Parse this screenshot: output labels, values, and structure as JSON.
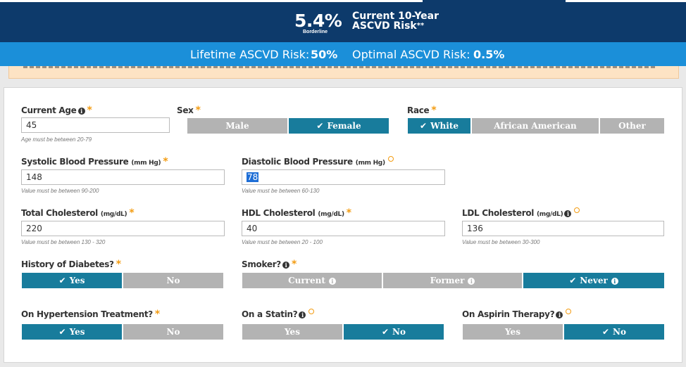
{
  "header": {
    "risk_value": "5.4%",
    "risk_class": "Borderline",
    "risk_title_line1": "Current 10-Year",
    "risk_title_line2": "ASCVD Risk",
    "risk_title_marker": "**",
    "lifetime_label": "Lifetime ASCVD Risk:",
    "lifetime_value": "50%",
    "optimal_label": "Optimal ASCVD Risk:",
    "optimal_value": "0.5%"
  },
  "form": {
    "age": {
      "label": "Current Age",
      "value": "45",
      "hint": "Age must be between 20-79"
    },
    "sex": {
      "label": "Sex",
      "options": [
        "Male",
        "Female"
      ],
      "selected": "Female"
    },
    "race": {
      "label": "Race",
      "options": [
        "White",
        "African American",
        "Other"
      ],
      "selected": "White"
    },
    "systolic": {
      "label": "Systolic Blood Pressure",
      "unit": "(mm Hg)",
      "value": "148",
      "hint": "Value must be between 90-200"
    },
    "diastolic": {
      "label": "Diastolic Blood Pressure",
      "unit": "(mm Hg)",
      "value": "78",
      "hint": "Value must be between 60-130"
    },
    "total_chol": {
      "label": "Total Cholesterol",
      "unit": "(mg/dL)",
      "value": "220",
      "hint": "Value must be between 130 - 320"
    },
    "hdl": {
      "label": "HDL Cholesterol",
      "unit": "(mg/dL)",
      "value": "40",
      "hint": "Value must be between 20 - 100"
    },
    "ldl": {
      "label": "LDL Cholesterol",
      "unit": "(mg/dL)",
      "value": "136",
      "hint": "Value must be between 30-300"
    },
    "diabetes": {
      "label": "History of Diabetes?",
      "options": [
        "Yes",
        "No"
      ],
      "selected": "Yes"
    },
    "smoker": {
      "label": "Smoker?",
      "options": [
        "Current",
        "Former",
        "Never"
      ],
      "selected": "Never"
    },
    "hypertension": {
      "label": "On Hypertension Treatment?",
      "options": [
        "Yes",
        "No"
      ],
      "selected": "Yes"
    },
    "statin": {
      "label": "On a Statin?",
      "options": [
        "Yes",
        "No"
      ],
      "selected": "No"
    },
    "aspirin": {
      "label": "On Aspirin Therapy?",
      "options": [
        "Yes",
        "No"
      ],
      "selected": "No"
    }
  },
  "icons": {
    "required": "asterisk-icon",
    "optional": "ring-icon",
    "info": "info-icon",
    "selected": "check-icon"
  },
  "colors": {
    "header": "#0d3a6b",
    "subheader": "#1b8fd9",
    "selected": "#187c9c",
    "unselected": "#b3b3b3",
    "required": "#f39c12",
    "warning_bg": "#fde3c4"
  }
}
